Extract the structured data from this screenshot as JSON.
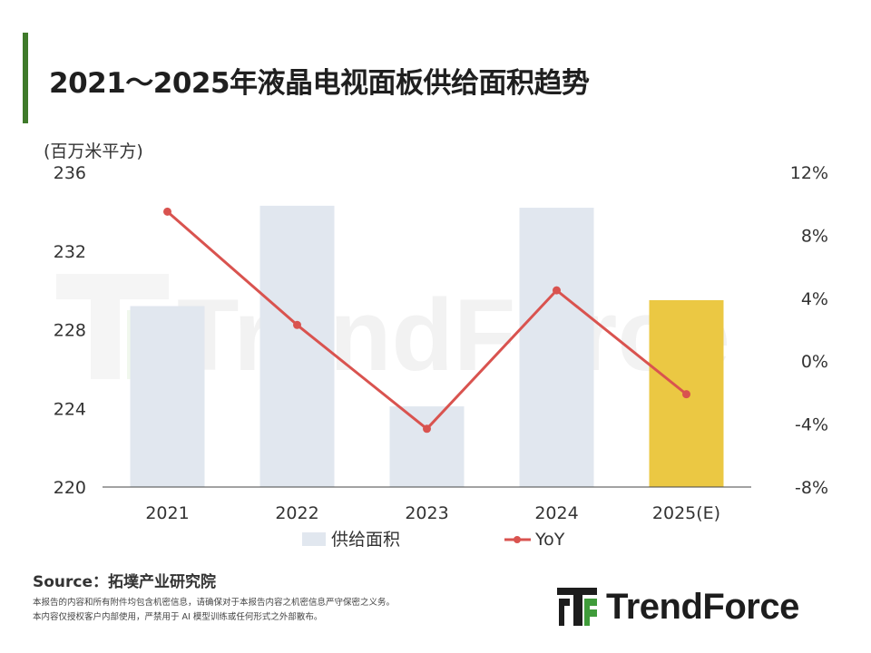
{
  "title": "2021～2025年液晶电视面板供给面积趋势",
  "unit_label": "(百万米平方)",
  "source": "Source：拓墣产业研究院",
  "notes": [
    "本报告的内容和所有附件均包含机密信息，请确保对于本报告内容之机密信息严守保密之义务。",
    "本内容仅授权客户内部使用，严禁用于 AI 模型训练或任何形式之外部散布。"
  ],
  "brand": "TrendForce",
  "watermark": "TrendForce",
  "colors": {
    "accent": "#3f7a2a",
    "bar": "#e1e7ef",
    "bar_estimate": "#ebc843",
    "line": "#d9534f",
    "axis": "#444444"
  },
  "chart_data": {
    "type": "bar",
    "categories": [
      "2021",
      "2022",
      "2023",
      "2024",
      "2025(E)"
    ],
    "series": [
      {
        "name": "供给面积",
        "type": "bar",
        "axis": "left",
        "values": [
          229.2,
          234.3,
          224.1,
          234.2,
          229.5
        ]
      },
      {
        "name": "YoY",
        "type": "line",
        "axis": "right",
        "values": [
          9.5,
          2.3,
          -4.3,
          4.5,
          -2.1
        ]
      }
    ],
    "y_left": {
      "min": 220,
      "max": 236,
      "ticks": [
        "220",
        "224",
        "228",
        "232",
        "236"
      ]
    },
    "y_right": {
      "min": -8,
      "max": 12,
      "ticks": [
        "-8%",
        "-4%",
        "0%",
        "4%",
        "8%",
        "12%"
      ]
    },
    "highlight_index": 4,
    "legend_position": "bottom",
    "grid": false
  }
}
